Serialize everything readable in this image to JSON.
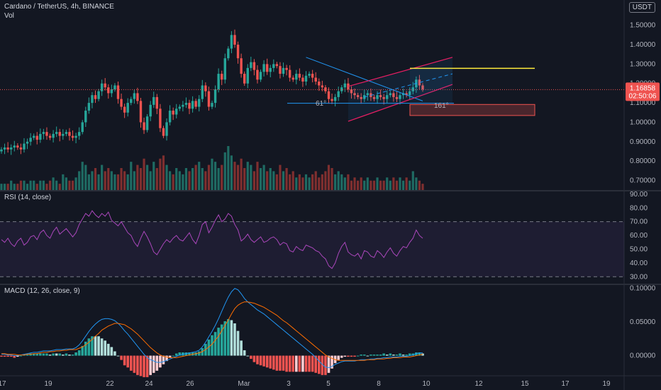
{
  "header": {
    "symbol_title": "Cardano / TetherUS, 4h, BINANCE",
    "volume_label": "Vol",
    "currency": "USDT"
  },
  "price_tag": {
    "price": "1.16858",
    "countdown": "02:50:06"
  },
  "annotations": {
    "fib_label_low": "61°",
    "fib_label_high": "161°"
  },
  "colors": {
    "background": "#131722",
    "up": "#26a69a",
    "down": "#ef5350",
    "rsi_line": "#ab47bc",
    "macd_line": "#2196f3",
    "signal_line": "#ff6d00",
    "channel": "#e91e63",
    "downtrend": "#2196f3",
    "target_line": "#ffeb3b"
  },
  "chart_data": [
    {
      "type": "candlestick",
      "title": "Cardano / TetherUS, 4h, BINANCE",
      "yaxis_ticks": [
        "1.50000",
        "1.40000",
        "1.30000",
        "1.20000",
        "1.10000",
        "1.00000",
        "0.90000",
        "0.80000",
        "0.70000"
      ],
      "ylim": [
        0.68,
        1.55
      ],
      "xaxis_ticks": [
        "17",
        "19",
        "22",
        "24",
        "26",
        "Mar",
        "3",
        "5",
        "8",
        "10",
        "12",
        "15",
        "17",
        "19"
      ],
      "current_price": 1.16858,
      "closes": [
        0.86,
        0.87,
        0.86,
        0.87,
        0.88,
        0.87,
        0.86,
        0.89,
        0.9,
        0.92,
        0.93,
        0.91,
        0.94,
        0.95,
        0.93,
        0.92,
        0.94,
        0.95,
        0.93,
        0.94,
        0.95,
        0.93,
        0.92,
        0.93,
        0.95,
        1.0,
        1.06,
        1.1,
        1.14,
        1.12,
        1.16,
        1.2,
        1.18,
        1.15,
        1.17,
        1.19,
        1.12,
        1.08,
        1.05,
        1.1,
        1.12,
        1.15,
        1.11,
        1.0,
        0.96,
        1.03,
        1.09,
        1.13,
        1.07,
        0.97,
        0.93,
        1.0,
        1.06,
        1.04,
        1.07,
        1.08,
        1.09,
        1.1,
        1.07,
        1.11,
        1.08,
        1.12,
        1.19,
        1.16,
        1.08,
        1.1,
        1.17,
        1.25,
        1.22,
        1.33,
        1.38,
        1.45,
        1.4,
        1.33,
        1.25,
        1.2,
        1.28,
        1.31,
        1.27,
        1.22,
        1.26,
        1.3,
        1.26,
        1.28,
        1.3,
        1.29,
        1.25,
        1.28,
        1.27,
        1.23,
        1.22,
        1.25,
        1.23,
        1.21,
        1.24,
        1.25,
        1.23,
        1.21,
        1.19,
        1.18,
        1.16,
        1.12,
        1.11,
        1.13,
        1.16,
        1.18,
        1.2,
        1.17,
        1.15,
        1.14,
        1.13,
        1.12,
        1.14,
        1.15,
        1.13,
        1.12,
        1.14,
        1.13,
        1.12,
        1.14,
        1.15,
        1.13,
        1.12,
        1.14,
        1.15,
        1.14,
        1.16,
        1.18,
        1.22,
        1.19,
        1.17
      ],
      "volumes": [
        2,
        2,
        2,
        3,
        2,
        2,
        3,
        3,
        2,
        3,
        3,
        2,
        3,
        3,
        2,
        3,
        4,
        3,
        2,
        5,
        4,
        3,
        3,
        4,
        6,
        9,
        8,
        5,
        6,
        7,
        5,
        8,
        6,
        7,
        6,
        5,
        5,
        7,
        6,
        5,
        9,
        6,
        8,
        7,
        10,
        8,
        6,
        9,
        7,
        10,
        11,
        8,
        6,
        5,
        7,
        6,
        5,
        7,
        6,
        7,
        8,
        9,
        7,
        6,
        8,
        10,
        9,
        7,
        8,
        12,
        14,
        11,
        9,
        8,
        10,
        7,
        9,
        8,
        6,
        9,
        7,
        8,
        6,
        7,
        6,
        5,
        8,
        6,
        7,
        5,
        6,
        4,
        5,
        4,
        5,
        4,
        5,
        6,
        4,
        5,
        6,
        8,
        7,
        5,
        6,
        5,
        4,
        5,
        3,
        4,
        3,
        4,
        3,
        4,
        3,
        3,
        4,
        3,
        3,
        4,
        3,
        4,
        3,
        4,
        3,
        4,
        3,
        6,
        4,
        3,
        2
      ]
    },
    {
      "type": "line",
      "title": "RSI (14, close)",
      "yaxis_ticks": [
        "90.00",
        "80.00",
        "70.00",
        "60.00",
        "50.00",
        "40.00",
        "30.00"
      ],
      "ylim": [
        25,
        92
      ],
      "band": [
        30,
        70
      ],
      "values": [
        57,
        55,
        58,
        54,
        52,
        56,
        58,
        53,
        55,
        59,
        60,
        57,
        62,
        64,
        60,
        58,
        63,
        66,
        61,
        63,
        65,
        62,
        59,
        62,
        68,
        72,
        76,
        74,
        78,
        75,
        73,
        76,
        74,
        77,
        71,
        69,
        67,
        70,
        66,
        62,
        60,
        55,
        52,
        58,
        63,
        59,
        54,
        48,
        46,
        50,
        54,
        57,
        55,
        58,
        60,
        57,
        56,
        59,
        62,
        57,
        54,
        60,
        68,
        70,
        62,
        66,
        71,
        75,
        70,
        72,
        76,
        74,
        68,
        64,
        56,
        58,
        61,
        57,
        55,
        57,
        59,
        55,
        56,
        58,
        59,
        57,
        53,
        55,
        54,
        49,
        48,
        52,
        50,
        49,
        53,
        52,
        51,
        49,
        48,
        45,
        43,
        38,
        36,
        40,
        47,
        52,
        55,
        48,
        46,
        45,
        47,
        43,
        49,
        48,
        45,
        44,
        49,
        47,
        44,
        48,
        51,
        47,
        45,
        49,
        52,
        51,
        55,
        58,
        64,
        60,
        58
      ]
    },
    {
      "type": "line",
      "title": "MACD (12, 26, close, 9)",
      "yaxis_ticks": [
        "0.10000",
        "0.05000",
        "0.00000"
      ],
      "ylim": [
        -0.03,
        0.105
      ],
      "series": [
        {
          "name": "MACD",
          "values": [
            0.002,
            0.002,
            0.001,
            0.001,
            0.0,
            0.0,
            0.001,
            0.002,
            0.003,
            0.004,
            0.005,
            0.005,
            0.006,
            0.007,
            0.007,
            0.007,
            0.008,
            0.009,
            0.009,
            0.009,
            0.01,
            0.01,
            0.01,
            0.012,
            0.016,
            0.022,
            0.029,
            0.036,
            0.042,
            0.047,
            0.051,
            0.054,
            0.055,
            0.055,
            0.054,
            0.052,
            0.048,
            0.043,
            0.037,
            0.032,
            0.026,
            0.02,
            0.014,
            0.008,
            0.002,
            -0.003,
            -0.006,
            -0.008,
            -0.01,
            -0.01,
            -0.009,
            -0.007,
            -0.005,
            -0.003,
            -0.001,
            0.001,
            0.002,
            0.003,
            0.004,
            0.005,
            0.006,
            0.008,
            0.013,
            0.02,
            0.028,
            0.036,
            0.045,
            0.055,
            0.066,
            0.077,
            0.087,
            0.095,
            0.1,
            0.098,
            0.092,
            0.085,
            0.08,
            0.076,
            0.072,
            0.068,
            0.065,
            0.062,
            0.058,
            0.054,
            0.05,
            0.046,
            0.042,
            0.038,
            0.034,
            0.03,
            0.026,
            0.022,
            0.018,
            0.014,
            0.01,
            0.006,
            0.002,
            -0.003,
            -0.008,
            -0.013,
            -0.017,
            -0.018,
            -0.016,
            -0.013,
            -0.011,
            -0.009,
            -0.008,
            -0.008,
            -0.008,
            -0.008,
            -0.007,
            -0.006,
            -0.006,
            -0.006,
            -0.005,
            -0.005,
            -0.004,
            -0.004,
            -0.003,
            -0.003,
            -0.002,
            -0.002,
            -0.002,
            -0.001,
            -0.001,
            -0.001,
            0.0,
            0.001,
            0.003,
            0.004,
            0.004
          ]
        },
        {
          "name": "Signal",
          "values": [
            0.003,
            0.003,
            0.002,
            0.002,
            0.002,
            0.001,
            0.001,
            0.001,
            0.002,
            0.002,
            0.003,
            0.003,
            0.004,
            0.005,
            0.005,
            0.006,
            0.006,
            0.007,
            0.007,
            0.008,
            0.008,
            0.009,
            0.009,
            0.009,
            0.011,
            0.013,
            0.016,
            0.02,
            0.024,
            0.029,
            0.033,
            0.038,
            0.041,
            0.044,
            0.046,
            0.048,
            0.048,
            0.047,
            0.046,
            0.043,
            0.04,
            0.036,
            0.032,
            0.027,
            0.022,
            0.017,
            0.012,
            0.008,
            0.004,
            0.001,
            -0.001,
            -0.002,
            -0.003,
            -0.003,
            -0.003,
            -0.002,
            -0.001,
            0.0,
            0.001,
            0.002,
            0.003,
            0.004,
            0.006,
            0.009,
            0.013,
            0.017,
            0.023,
            0.029,
            0.037,
            0.045,
            0.053,
            0.062,
            0.07,
            0.075,
            0.078,
            0.08,
            0.08,
            0.079,
            0.078,
            0.076,
            0.074,
            0.072,
            0.069,
            0.066,
            0.063,
            0.06,
            0.056,
            0.052,
            0.049,
            0.045,
            0.041,
            0.037,
            0.033,
            0.029,
            0.025,
            0.021,
            0.017,
            0.013,
            0.009,
            0.005,
            0.001,
            -0.002,
            -0.004,
            -0.006,
            -0.007,
            -0.007,
            -0.007,
            -0.007,
            -0.007,
            -0.007,
            -0.007,
            -0.007,
            -0.007,
            -0.006,
            -0.006,
            -0.006,
            -0.005,
            -0.005,
            -0.005,
            -0.004,
            -0.004,
            -0.003,
            -0.003,
            -0.003,
            -0.002,
            -0.002,
            -0.002,
            -0.001,
            0.0,
            0.001,
            0.002
          ]
        }
      ]
    }
  ]
}
